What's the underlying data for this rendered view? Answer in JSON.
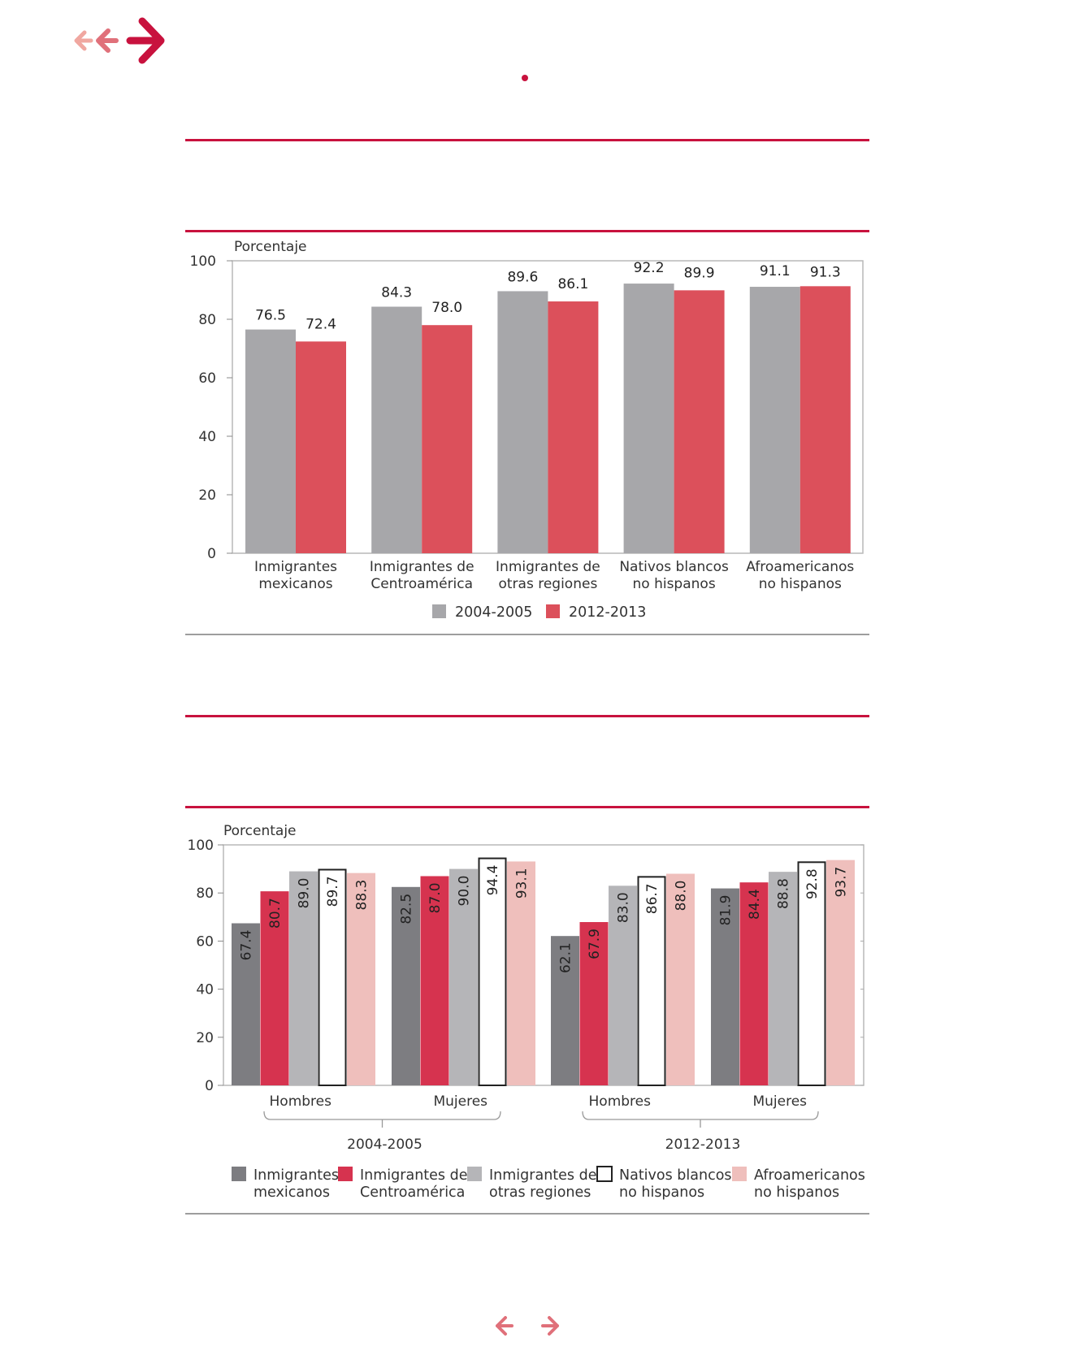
{
  "colors": {
    "accent": "#c8123e",
    "gray_series": "#a7a7aa",
    "red_series": "#dc505b",
    "dark_gray": "#7d7d81",
    "crimson": "#d6334f",
    "light_gray": "#b5b5b8",
    "white_outline": "#ffffff",
    "pink": "#efbfbc"
  },
  "icons": {
    "back_icon": "double-left-arrow-icon",
    "forward_icon": "right-arrow-icon",
    "prev_page_icon": "left-arrow-icon",
    "next_page_icon": "right-arrow-icon"
  },
  "chart_data": [
    {
      "type": "bar",
      "ylabel": "Porcentaje",
      "ylim": [
        0,
        100
      ],
      "yticks": [
        "0",
        "20",
        "40",
        "60",
        "80",
        "100"
      ],
      "categories": [
        [
          "Inmigrantes",
          "mexicanos"
        ],
        [
          "Inmigrantes de",
          "Centroamérica"
        ],
        [
          "Inmigrantes de",
          "otras regiones"
        ],
        [
          "Nativos blancos",
          "no hispanos"
        ],
        [
          "Afroamericanos",
          "no hispanos"
        ]
      ],
      "series": [
        {
          "name": "2004-2005",
          "values": [
            76.5,
            84.3,
            89.6,
            92.2,
            91.1
          ],
          "labels": [
            "76.5",
            "84.3",
            "89.6",
            "92.2",
            "91.1"
          ]
        },
        {
          "name": "2012-2013",
          "values": [
            72.4,
            78.0,
            86.1,
            89.9,
            91.3
          ],
          "labels": [
            "72.4",
            "78.0",
            "86.1",
            "89.9",
            "91.3"
          ]
        }
      ],
      "legend": [
        "2004-2005",
        "2012-2013"
      ],
      "legend_position": "bottom",
      "grid": false
    },
    {
      "type": "bar",
      "ylabel": "Porcentaje",
      "ylim": [
        0,
        100
      ],
      "yticks": [
        "0",
        "20",
        "40",
        "60",
        "80",
        "100"
      ],
      "groups": [
        "Hombres",
        "Mujeres",
        "Hombres",
        "Mujeres"
      ],
      "periods": [
        "2004-2005",
        "2012-2013"
      ],
      "series": [
        {
          "name": "Inmigrantes mexicanos",
          "legend": [
            "Inmigrantes",
            "mexicanos"
          ],
          "values": [
            67.4,
            82.5,
            62.1,
            81.9
          ],
          "labels": [
            "67.4",
            "82.5",
            "62.1",
            "81.9"
          ]
        },
        {
          "name": "Inmigrantes de Centroamérica",
          "legend": [
            "Inmigrantes de",
            "Centroamérica"
          ],
          "values": [
            80.7,
            87.0,
            67.9,
            84.4
          ],
          "labels": [
            "80.7",
            "87.0",
            "67.9",
            "84.4"
          ]
        },
        {
          "name": "Inmigrantes de otras regiones",
          "legend": [
            "Inmigrantes de",
            "otras regiones"
          ],
          "values": [
            89.0,
            90.0,
            83.0,
            88.8
          ],
          "labels": [
            "89.0",
            "90.0",
            "83.0",
            "88.8"
          ]
        },
        {
          "name": "Nativos blancos no hispanos",
          "legend": [
            "Nativos blancos",
            "no hispanos"
          ],
          "values": [
            89.7,
            94.4,
            86.7,
            92.8
          ],
          "labels": [
            "89.7",
            "94.4",
            "86.7",
            "92.8"
          ]
        },
        {
          "name": "Afroamericanos no hispanos",
          "legend": [
            "Afroamericanos",
            "no hispanos"
          ],
          "values": [
            88.3,
            93.1,
            88.0,
            93.7
          ],
          "labels": [
            "88.3",
            "93.1",
            "88.0",
            "93.7"
          ]
        }
      ],
      "legend_position": "bottom",
      "grid": false
    }
  ]
}
